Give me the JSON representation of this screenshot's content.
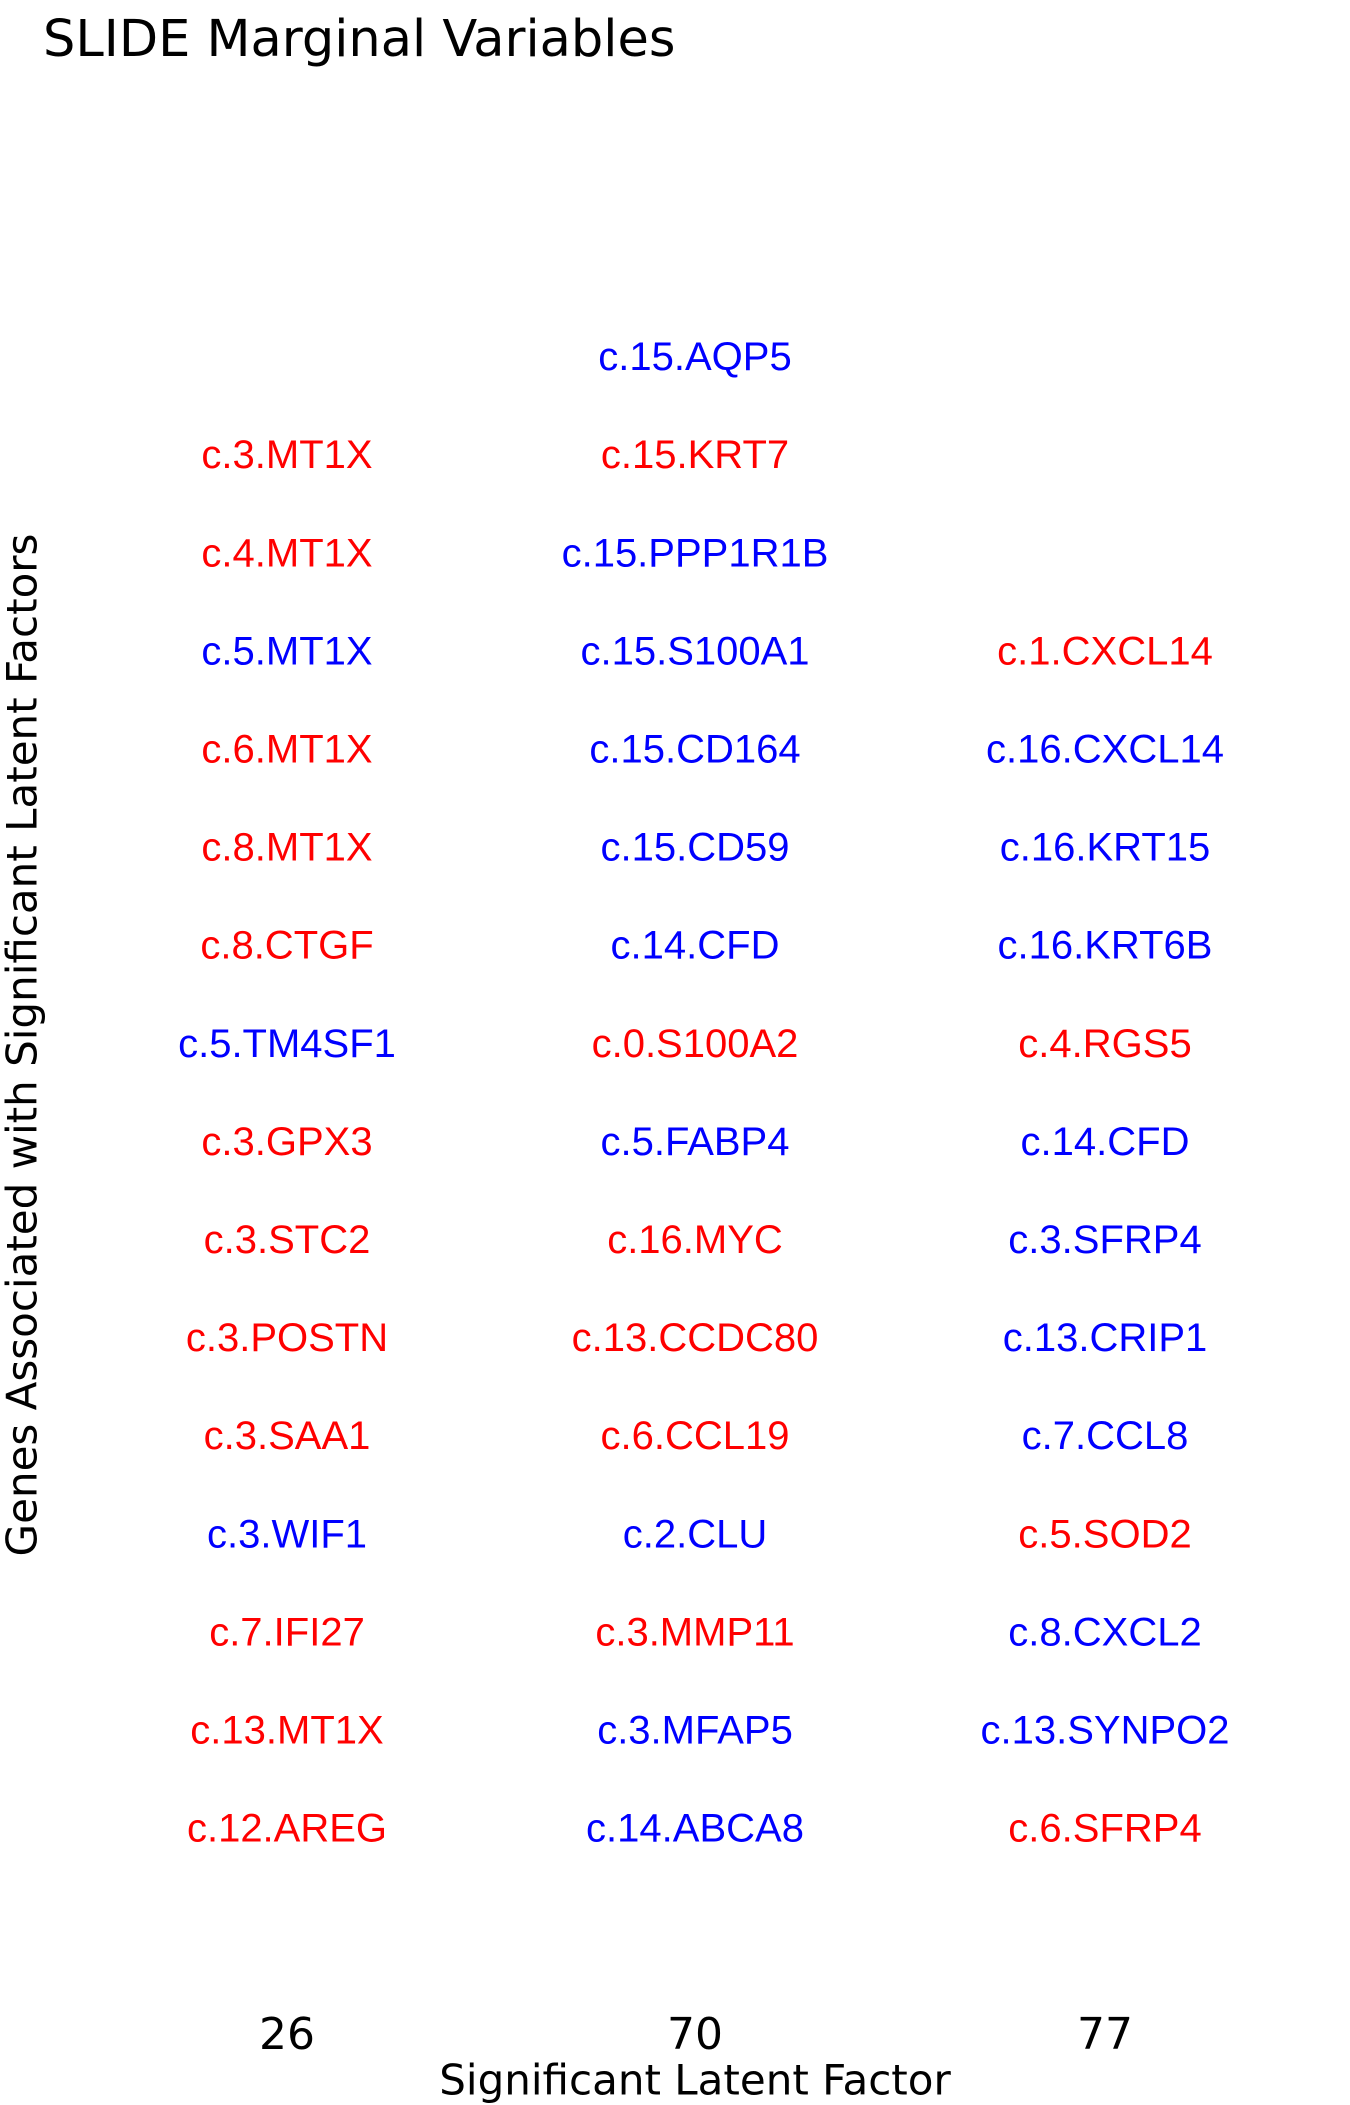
{
  "title": "SLIDE Marginal Variables",
  "colors": {
    "positive": "#ff0000",
    "negative": "#0000ff",
    "text": "#000000"
  },
  "chart_data": {
    "type": "table",
    "title": "SLIDE Marginal Variables",
    "xlabel": "Significant Latent Factor",
    "ylabel": "Genes Associated with Significant Latent Factors",
    "categories": [
      "26",
      "70",
      "77"
    ],
    "columns": [
      {
        "factor": "26",
        "genes": [
          {
            "label": "c.12.AREG",
            "color": "red"
          },
          {
            "label": "c.13.MT1X",
            "color": "red"
          },
          {
            "label": "c.7.IFI27",
            "color": "red"
          },
          {
            "label": "c.3.WIF1",
            "color": "blue"
          },
          {
            "label": "c.3.SAA1",
            "color": "red"
          },
          {
            "label": "c.3.POSTN",
            "color": "red"
          },
          {
            "label": "c.3.STC2",
            "color": "red"
          },
          {
            "label": "c.3.GPX3",
            "color": "red"
          },
          {
            "label": "c.5.TM4SF1",
            "color": "blue"
          },
          {
            "label": "c.8.CTGF",
            "color": "red"
          },
          {
            "label": "c.8.MT1X",
            "color": "red"
          },
          {
            "label": "c.6.MT1X",
            "color": "red"
          },
          {
            "label": "c.5.MT1X",
            "color": "blue"
          },
          {
            "label": "c.4.MT1X",
            "color": "red"
          },
          {
            "label": "c.3.MT1X",
            "color": "red"
          }
        ]
      },
      {
        "factor": "70",
        "genes": [
          {
            "label": "c.14.ABCA8",
            "color": "blue"
          },
          {
            "label": "c.3.MFAP5",
            "color": "blue"
          },
          {
            "label": "c.3.MMP11",
            "color": "red"
          },
          {
            "label": "c.2.CLU",
            "color": "blue"
          },
          {
            "label": "c.6.CCL19",
            "color": "red"
          },
          {
            "label": "c.13.CCDC80",
            "color": "red"
          },
          {
            "label": "c.16.MYC",
            "color": "red"
          },
          {
            "label": "c.5.FABP4",
            "color": "blue"
          },
          {
            "label": "c.0.S100A2",
            "color": "red"
          },
          {
            "label": "c.14.CFD",
            "color": "blue"
          },
          {
            "label": "c.15.CD59",
            "color": "blue"
          },
          {
            "label": "c.15.CD164",
            "color": "blue"
          },
          {
            "label": "c.15.S100A1",
            "color": "blue"
          },
          {
            "label": "c.15.PPP1R1B",
            "color": "blue"
          },
          {
            "label": "c.15.KRT7",
            "color": "red"
          },
          {
            "label": "c.15.AQP5",
            "color": "blue"
          }
        ]
      },
      {
        "factor": "77",
        "genes": [
          {
            "label": "c.6.SFRP4",
            "color": "red"
          },
          {
            "label": "c.13.SYNPO2",
            "color": "blue"
          },
          {
            "label": "c.8.CXCL2",
            "color": "blue"
          },
          {
            "label": "c.5.SOD2",
            "color": "red"
          },
          {
            "label": "c.7.CCL8",
            "color": "blue"
          },
          {
            "label": "c.13.CRIP1",
            "color": "blue"
          },
          {
            "label": "c.3.SFRP4",
            "color": "blue"
          },
          {
            "label": "c.14.CFD",
            "color": "blue"
          },
          {
            "label": "c.4.RGS5",
            "color": "red"
          },
          {
            "label": "c.16.KRT6B",
            "color": "blue"
          },
          {
            "label": "c.16.KRT15",
            "color": "blue"
          },
          {
            "label": "c.16.CXCL14",
            "color": "blue"
          },
          {
            "label": "c.1.CXCL14",
            "color": "red"
          }
        ]
      }
    ],
    "grid": false,
    "legend": "none"
  }
}
